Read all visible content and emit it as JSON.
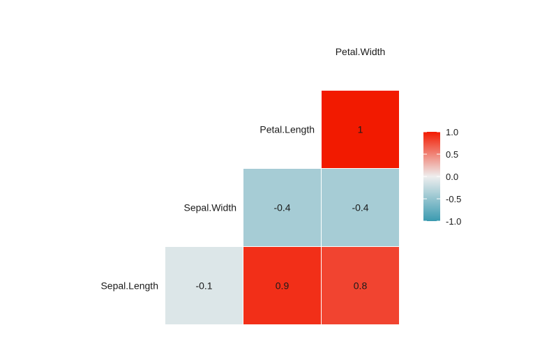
{
  "chart_data": {
    "type": "heatmap",
    "variables": [
      "Sepal.Length",
      "Sepal.Width",
      "Petal.Length",
      "Petal.Width"
    ],
    "cells": [
      {
        "row": "Sepal.Length",
        "col": "Sepal.Width",
        "value": -0.1,
        "label": "-0.1"
      },
      {
        "row": "Sepal.Length",
        "col": "Petal.Length",
        "value": 0.9,
        "label": "0.9"
      },
      {
        "row": "Sepal.Length",
        "col": "Petal.Width",
        "value": 0.8,
        "label": "0.8"
      },
      {
        "row": "Sepal.Width",
        "col": "Petal.Length",
        "value": -0.4,
        "label": "-0.4"
      },
      {
        "row": "Sepal.Width",
        "col": "Petal.Width",
        "value": -0.4,
        "label": "-0.4"
      },
      {
        "row": "Petal.Length",
        "col": "Petal.Width",
        "value": 1.0,
        "label": "1"
      }
    ],
    "color_scale": {
      "low": "#3a9ab0",
      "mid": "#eeeeee",
      "high": "#f21a00",
      "limits": [
        -1,
        1
      ]
    },
    "legend": {
      "position": "right",
      "ticks": [
        "1.0",
        "0.5",
        "0.0",
        "-0.5",
        "-1.0"
      ]
    }
  }
}
